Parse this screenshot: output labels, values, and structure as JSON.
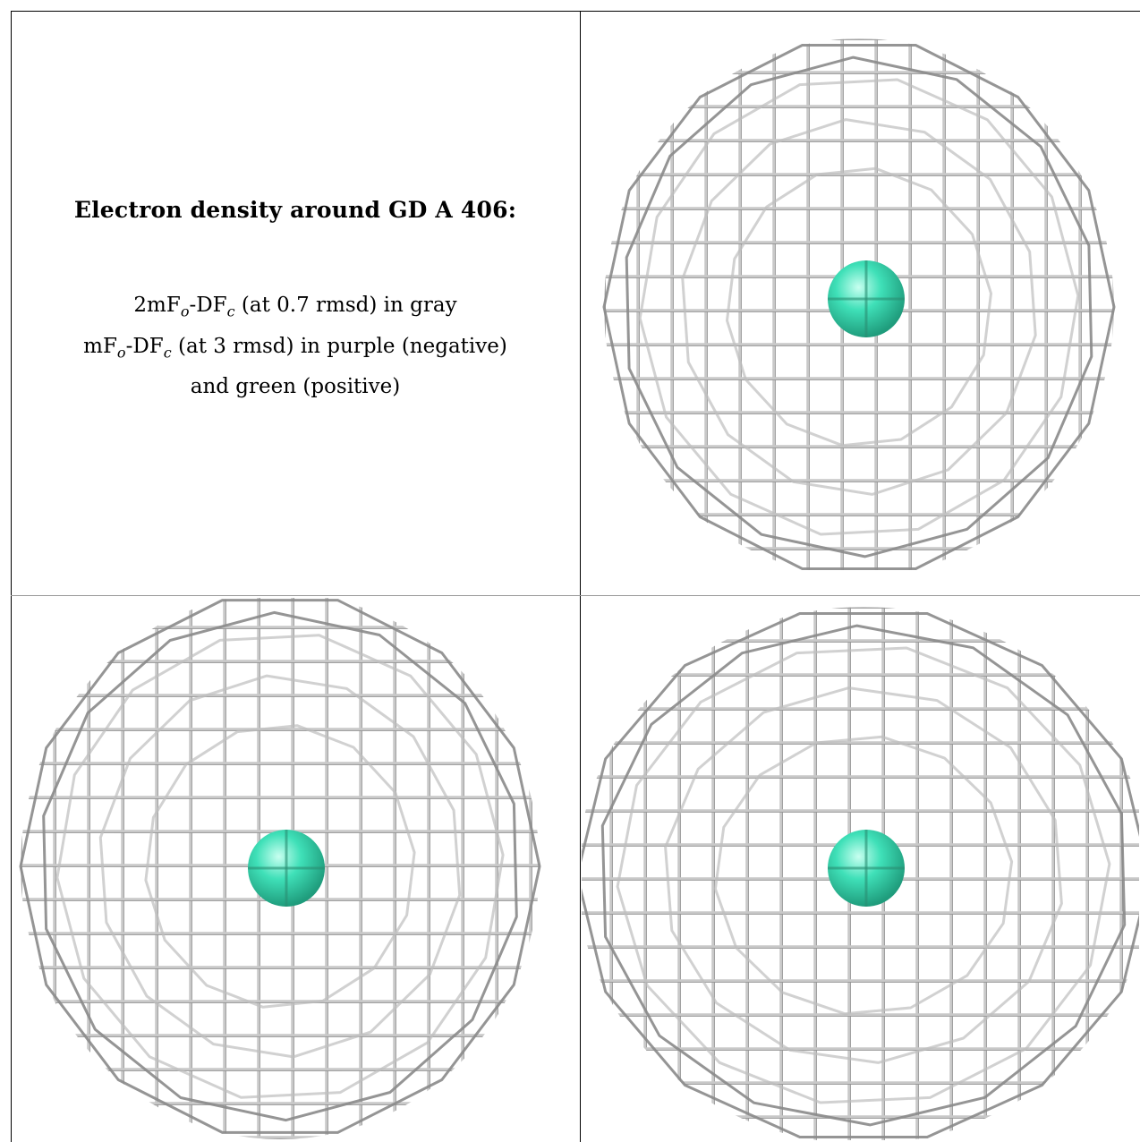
{
  "caption": {
    "title": "Electron density around GD A 406:",
    "line1": "2mFₒ-DFᶜ (at 0.7 rmsd) in gray",
    "line2": "mFₒ-DFᶜ (at 3 rmsd) in purple (negative)",
    "line3": "and green (positive)"
  },
  "colors": {
    "mesh_light": "#c8c8c8",
    "mesh_dark": "#6e6e6e",
    "atom": "#3fe0b8",
    "atom_highlight": "#c8fff0",
    "frame": "#000000"
  },
  "panels": [
    {
      "name": "view-top-right",
      "atom": "GD"
    },
    {
      "name": "view-bottom-left",
      "atom": "GD"
    },
    {
      "name": "view-bottom-right",
      "atom": "GD"
    }
  ]
}
